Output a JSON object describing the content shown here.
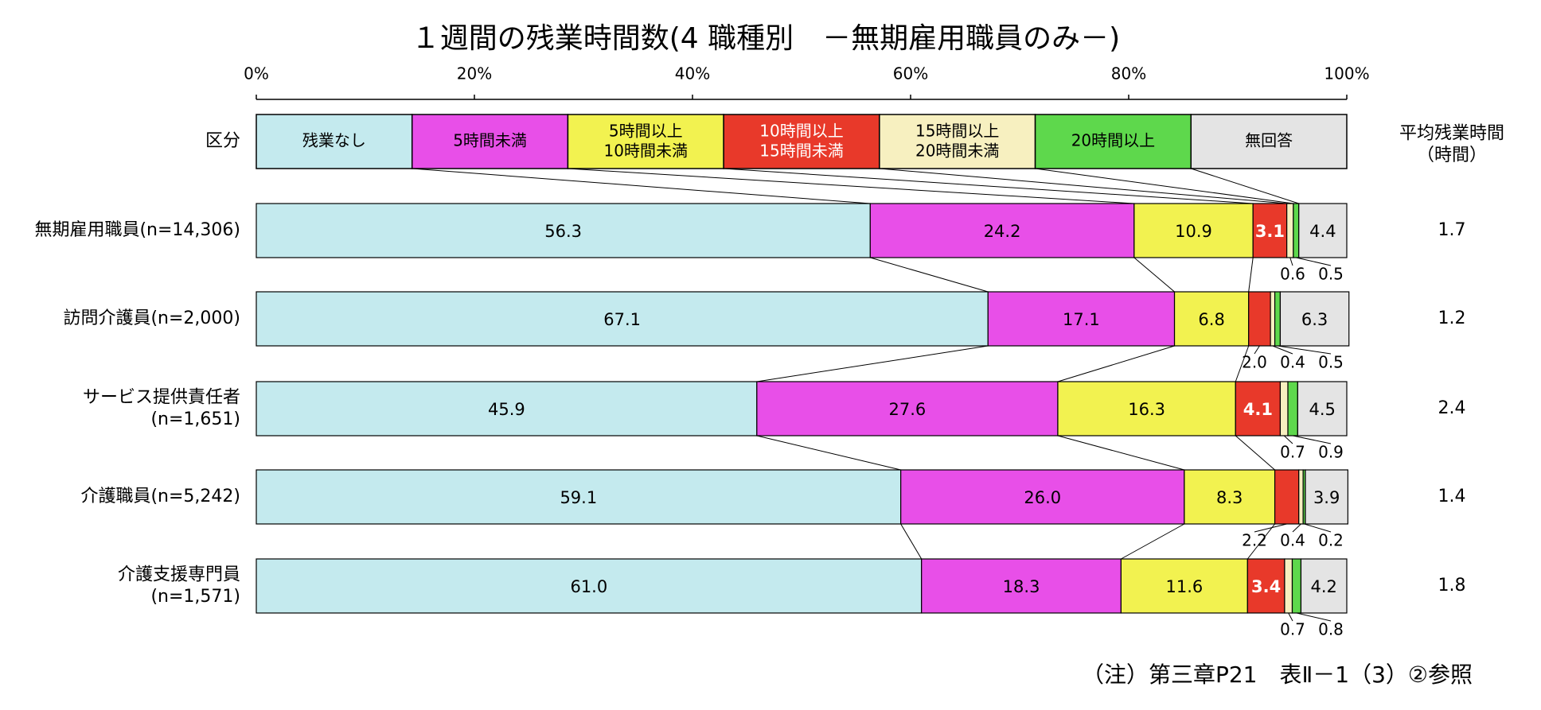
{
  "chart_data": {
    "type": "stacked_bar_100",
    "title": "１週間の残業時間数(4 職種別　－無期雇用職員のみ－)",
    "legend_label": "区分",
    "categories": [
      "無期雇用職員(n=14,306)",
      "訪問介護員(n=2,000)",
      "サービス提供責任者\n(n=1,651)",
      "介護職員(n=5,242)",
      "介護支援専門員\n(n=1,571)"
    ],
    "xlim": [
      0,
      100
    ],
    "xticks": [
      {
        "value": 0,
        "label": "0%"
      },
      {
        "value": 20,
        "label": "20%"
      },
      {
        "value": 40,
        "label": "40%"
      },
      {
        "value": 60,
        "label": "60%"
      },
      {
        "value": 80,
        "label": "80%"
      },
      {
        "value": 100,
        "label": "100%"
      }
    ],
    "series": [
      {
        "name": "残業なし",
        "color": "#c4eaee",
        "text_color": "#000000",
        "values": [
          56.3,
          67.1,
          45.9,
          59.1,
          61.0
        ],
        "value_labels": [
          "56.3",
          "67.1",
          "45.9",
          "59.1",
          "61.0"
        ]
      },
      {
        "name": "5時間未満",
        "color": "#e84fe8",
        "text_color": "#000000",
        "values": [
          24.2,
          17.1,
          27.6,
          26.0,
          18.3
        ],
        "value_labels": [
          "24.2",
          "17.1",
          "27.6",
          "26.0",
          "18.3"
        ]
      },
      {
        "name": "5時間以上\n10時間未満",
        "color": "#f2f250",
        "text_color": "#000000",
        "values": [
          10.9,
          6.8,
          16.3,
          8.3,
          11.6
        ],
        "value_labels": [
          "10.9",
          "6.8",
          "16.3",
          "8.3",
          "11.6"
        ]
      },
      {
        "name": "10時間以上\n15時間未満",
        "color": "#e8392a",
        "text_color": "#ffffff",
        "values": [
          3.1,
          2.0,
          4.1,
          2.2,
          3.4
        ],
        "value_labels": [
          "3.1",
          "2.0",
          "4.1",
          "2.2",
          "3.4"
        ]
      },
      {
        "name": "15時間以上\n20時間未満",
        "color": "#f7f0c0",
        "text_color": "#000000",
        "values": [
          0.6,
          0.4,
          0.7,
          0.4,
          0.7
        ],
        "value_labels": [
          "0.6",
          "0.4",
          "0.7",
          "0.4",
          "0.7"
        ]
      },
      {
        "name": "20時間以上",
        "color": "#5ed84c",
        "text_color": "#000000",
        "values": [
          0.5,
          0.5,
          0.9,
          0.2,
          0.8
        ],
        "value_labels": [
          "0.5",
          "0.5",
          "0.9",
          "0.2",
          "0.8"
        ]
      },
      {
        "name": "無回答",
        "color": "#e4e4e4",
        "text_color": "#000000",
        "values": [
          4.4,
          6.3,
          4.5,
          3.9,
          4.2
        ],
        "value_labels": [
          "4.4",
          "6.3",
          "4.5",
          "3.9",
          "4.2"
        ]
      }
    ],
    "averages_header": "平均残業時間\n（時間）",
    "averages": [
      1.7,
      1.2,
      2.4,
      1.4,
      1.8
    ],
    "note": "（注）第三章P21　表Ⅱ－1（3）②参照"
  }
}
